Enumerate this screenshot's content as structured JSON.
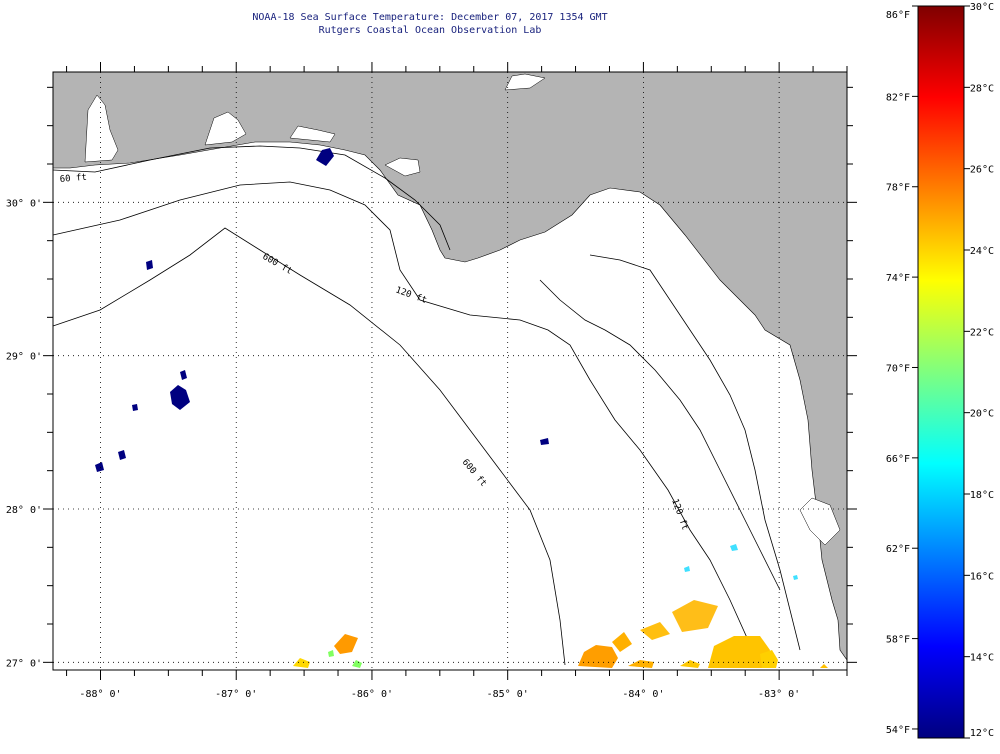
{
  "header": {
    "title": "NOAA-18 Sea Surface Temperature:  December 07, 2017 1354 GMT",
    "subtitle": "Rutgers Coastal Ocean Observation Lab"
  },
  "map": {
    "lon_range": [
      -88.35,
      -82.5
    ],
    "lat_range": [
      26.95,
      30.85
    ],
    "lon_labels": [
      "-88° 0'",
      "-87° 0'",
      "-86° 0'",
      "-85° 0'",
      "-84° 0'",
      "-83° 0'"
    ],
    "lat_labels": [
      "30° 0'",
      "29° 0'",
      "28° 0'",
      "27° 0'"
    ],
    "contour_labels": [
      "60 ft",
      "120 ft",
      "600 ft",
      "600 ft",
      "120 ft"
    ],
    "colors": {
      "land": "#b4b4b4",
      "water": "#ffffff",
      "grid": "#000000"
    }
  },
  "colorbar": {
    "f_labels": [
      "86°F",
      "82°F",
      "78°F",
      "74°F",
      "70°F",
      "66°F",
      "62°F",
      "58°F",
      "54°F"
    ],
    "c_labels": [
      "30°C",
      "28°C",
      "26°C",
      "24°C",
      "22°C",
      "20°C",
      "18°C",
      "16°C",
      "14°C",
      "12°C"
    ],
    "range_c": [
      12,
      30
    ],
    "colormap": [
      "#00007f",
      "#0000ff",
      "#007fff",
      "#00ffff",
      "#7fff7f",
      "#ffff00",
      "#ff7f00",
      "#ff0000",
      "#7f0000"
    ]
  }
}
